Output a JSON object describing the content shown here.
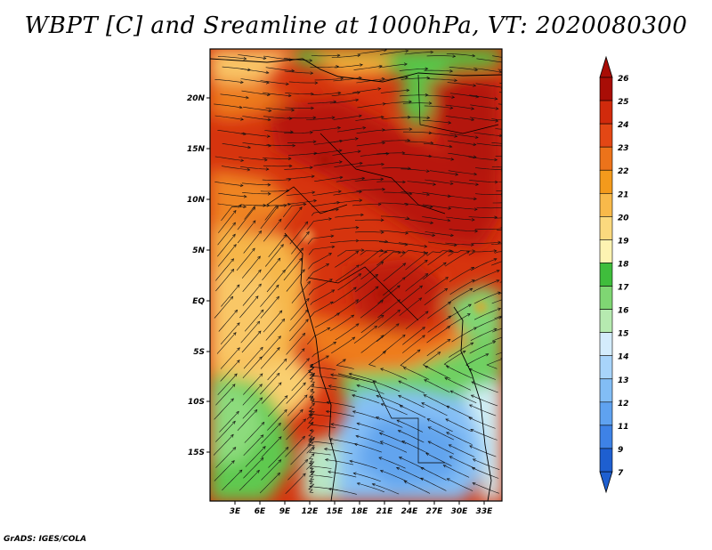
{
  "title": "WBPT [C] and Sreamline at 1000hPa, VT: 2020080300",
  "footer": "GrADS: IGES/COLA",
  "map": {
    "lat_labels": [
      "20N",
      "15N",
      "10N",
      "5N",
      "EQ",
      "5S",
      "10S",
      "15S"
    ],
    "lon_labels": [
      "3E",
      "6E",
      "9E",
      "12E",
      "15E",
      "18E",
      "21E",
      "24E",
      "27E",
      "30E",
      "33E"
    ]
  },
  "colorbar": {
    "labels": [
      "7",
      "9",
      "11",
      "12",
      "13",
      "14",
      "15",
      "16",
      "17",
      "18",
      "19",
      "20",
      "21",
      "22",
      "23",
      "24",
      "25",
      "26"
    ],
    "colors": [
      "#1e5fd0",
      "#3e82e6",
      "#5fa2f0",
      "#82bdf5",
      "#a8d4fa",
      "#d4ecfc",
      "#b6eab0",
      "#7fd673",
      "#3fbd3c",
      "#fdf3b2",
      "#fbd97e",
      "#f8b94a",
      "#f39a1c",
      "#ec731a",
      "#e34715",
      "#d12a0c",
      "#a80d06"
    ]
  }
}
